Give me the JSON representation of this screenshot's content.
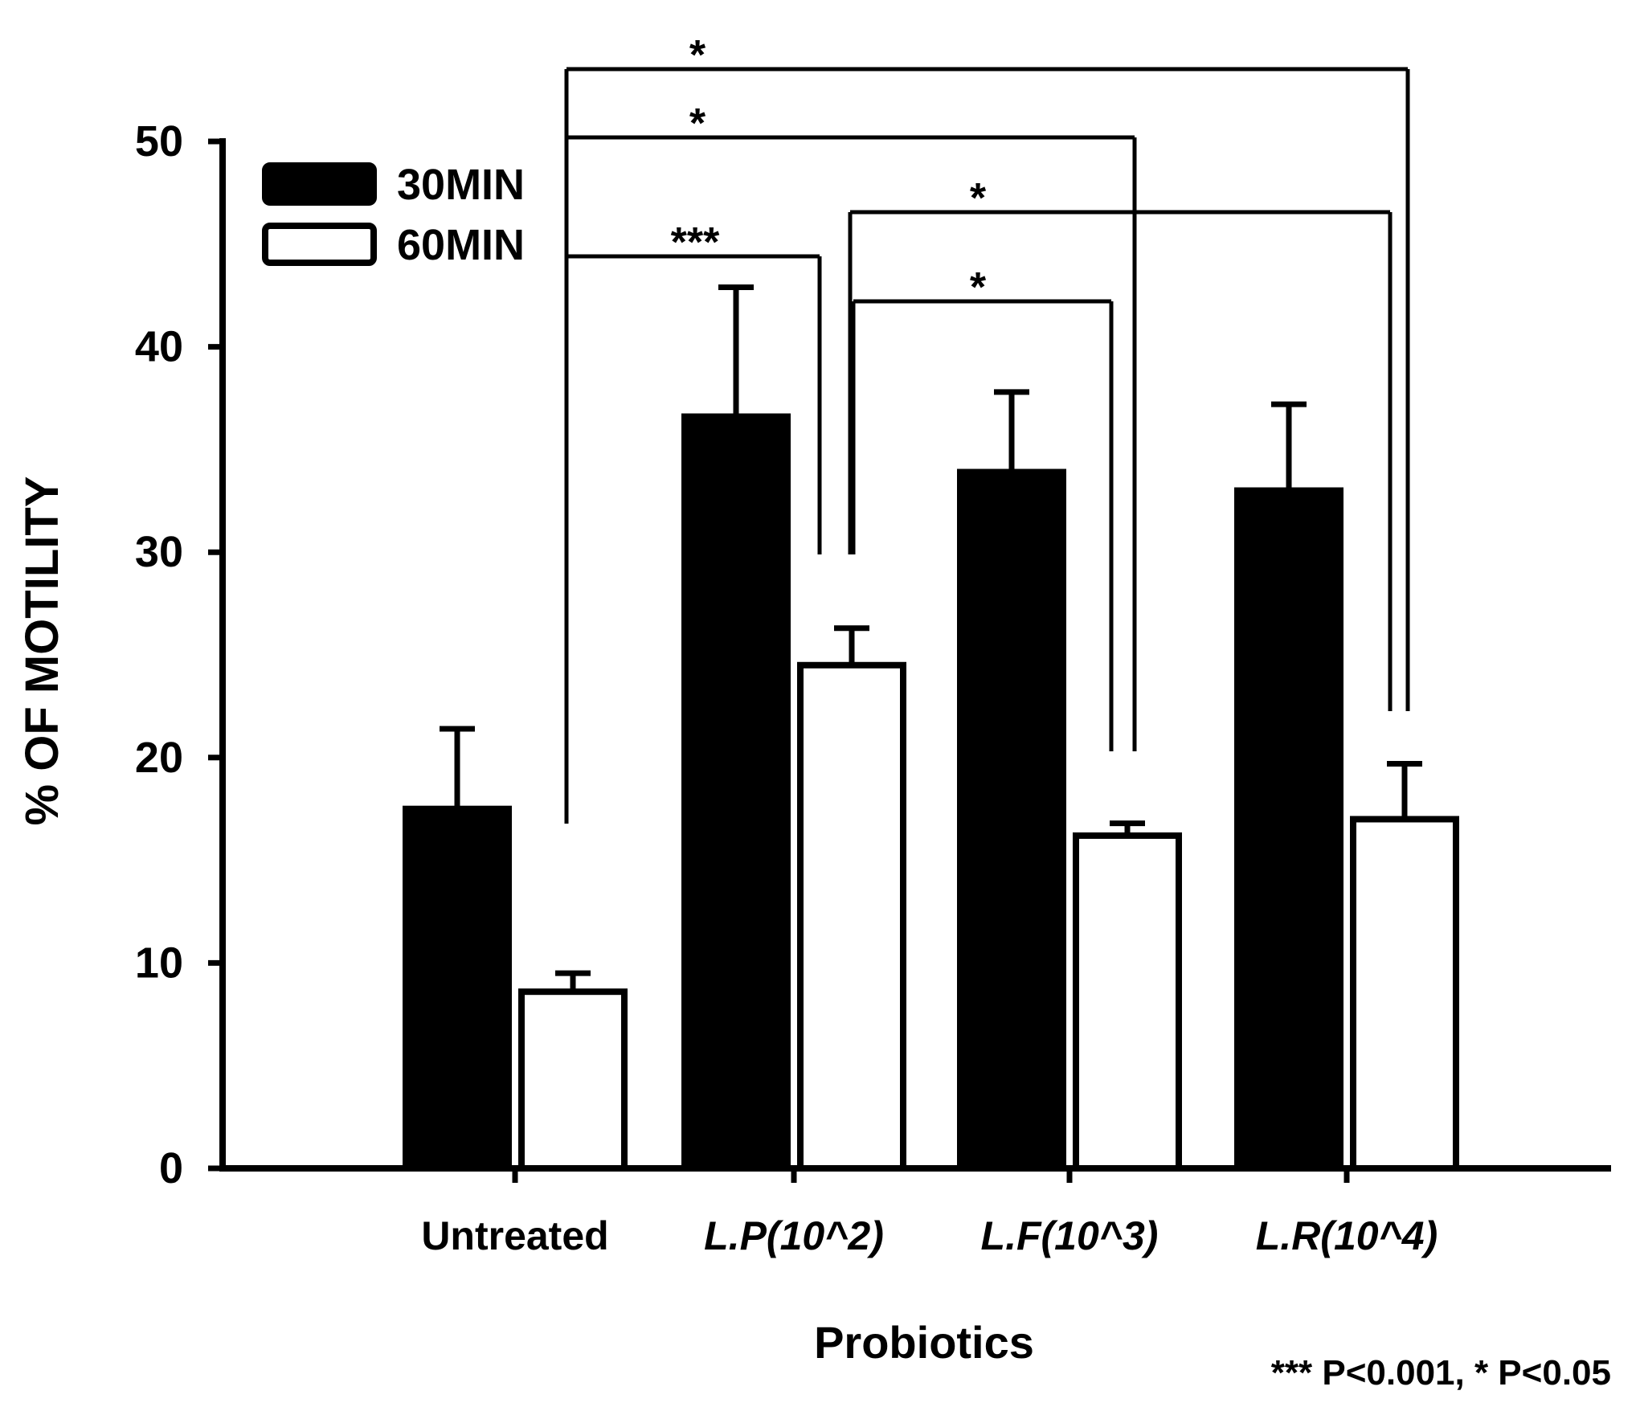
{
  "chart_data": {
    "type": "bar",
    "xlabel": "Probiotics",
    "ylabel": "% OF MOTILITY",
    "ylim": [
      0,
      50
    ],
    "yticks": [
      0,
      10,
      20,
      30,
      40,
      50
    ],
    "categories": [
      "Untreated",
      "L.P(10^2)",
      "L.F(10^3)",
      "L.R(10^4)"
    ],
    "italic_categories": [
      false,
      true,
      true,
      true
    ],
    "series": [
      {
        "name": "30MIN",
        "fill": "#000000",
        "values": [
          17.5,
          36.6,
          33.9,
          33.0
        ],
        "errors": [
          3.9,
          6.3,
          3.9,
          4.2
        ]
      },
      {
        "name": "60MIN",
        "fill": "#ffffff",
        "values": [
          8.6,
          24.5,
          16.2,
          17.0
        ],
        "errors": [
          0.9,
          1.8,
          0.6,
          2.7
        ]
      }
    ],
    "legend_position": "top-left",
    "significance": [
      {
        "label": "*",
        "from": "Untreated",
        "to": "L.R(10^4)"
      },
      {
        "label": "*",
        "from": "Untreated",
        "to": "L.F(10^3)"
      },
      {
        "label": "*",
        "from": "L.P(10^2)",
        "to": "L.R(10^4)"
      },
      {
        "label": "***",
        "from": "Untreated",
        "to": "L.P(10^2)"
      },
      {
        "label": "*",
        "from": "L.P(10^2)",
        "to": "L.F(10^3)"
      }
    ],
    "footnote": "*** P<0.001, * P<0.05"
  }
}
